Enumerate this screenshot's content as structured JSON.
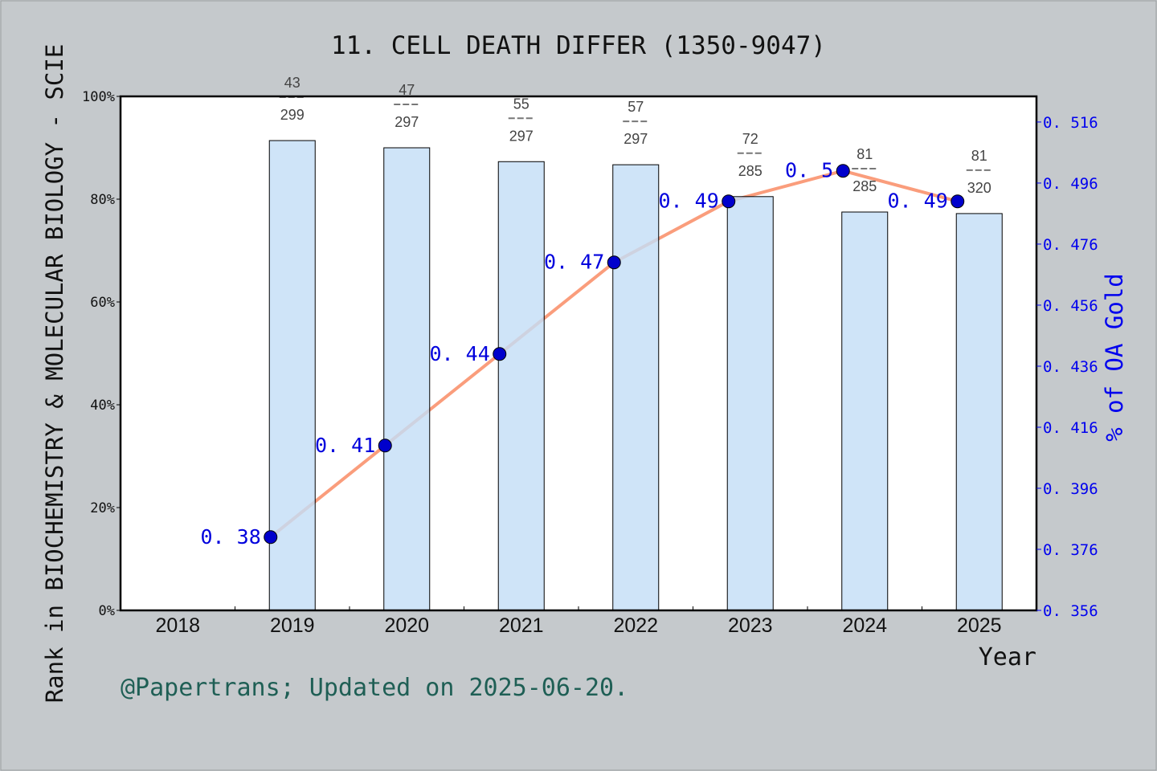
{
  "chart_data": {
    "type": "bar+line",
    "title": "11. CELL DEATH DIFFER (1350-9047)",
    "xlabel": "Year",
    "ylabel_left": "Rank in BIOCHEMISTRY & MOLECULAR BIOLOGY - SCIE",
    "ylabel_right": "% of OA Gold",
    "categories": [
      "2018",
      "2019",
      "2020",
      "2021",
      "2022",
      "2023",
      "2024",
      "2025"
    ],
    "left_axis": {
      "ylim": [
        0,
        100
      ],
      "ticks": [
        "0%",
        "20%",
        "40%",
        "60%",
        "80%",
        "100%"
      ]
    },
    "right_axis": {
      "ylim": [
        0.356,
        0.5244
      ],
      "ticks": [
        "0.356",
        "0.376",
        "0.396",
        "0.416",
        "0.436",
        "0.456",
        "0.476",
        "0.496",
        "0.516"
      ]
    },
    "bars": {
      "values_percent": [
        null,
        91.4,
        90.0,
        87.3,
        86.7,
        80.5,
        77.5,
        77.2
      ],
      "rank_labels": [
        null,
        {
          "rank": "43",
          "total": "299"
        },
        {
          "rank": "47",
          "total": "297"
        },
        {
          "rank": "55",
          "total": "297"
        },
        {
          "rank": "57",
          "total": "297"
        },
        {
          "rank": "72",
          "total": "285"
        },
        {
          "rank": "81",
          "total": "285"
        },
        {
          "rank": "81",
          "total": "320"
        }
      ],
      "color": "#c4def6"
    },
    "line": {
      "values": [
        null,
        0.38,
        0.41,
        0.44,
        0.47,
        0.49,
        0.5,
        0.49
      ],
      "labels": [
        null,
        "0. 38",
        "0. 41",
        "0. 44",
        "0. 47",
        "0. 49",
        "0. 5",
        "0. 49"
      ],
      "line_color": "#fa9d7c",
      "marker_color": "#0000cc",
      "label_color": "#0000dd"
    },
    "grid": false
  },
  "footer": "@Papertrans; Updated on 2025-06-20."
}
